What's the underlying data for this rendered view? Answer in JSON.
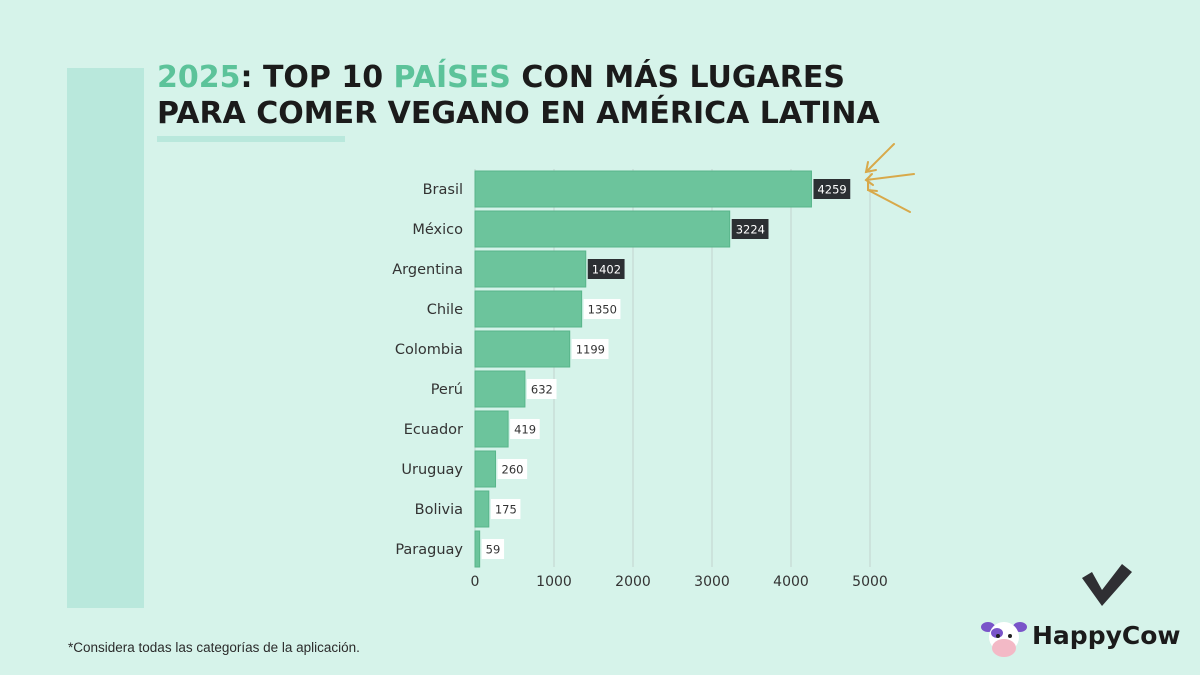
{
  "title": {
    "line1_year": "2025",
    "line1_sep": ": TOP 10 ",
    "line1_highlight": "PAÍSES",
    "line1_rest": " CON MÁS LUGARES",
    "line2": "PARA COMER VEGANO EN AMÉRICA LATINA"
  },
  "footnote": "*Considera todas las categorías de la aplicación.",
  "logo": {
    "text": "HappyCow"
  },
  "colors": {
    "background": "#d6f3ea",
    "bar": "#6cc49c",
    "accent_title": "#5cc39a",
    "arrow": "#d8a94a",
    "dark_label": "#2c2f33"
  },
  "chart_data": {
    "type": "bar",
    "orientation": "horizontal",
    "categories": [
      "Brasil",
      "México",
      "Argentina",
      "Chile",
      "Colombia",
      "Perú",
      "Ecuador",
      "Uruguay",
      "Bolivia",
      "Paraguay"
    ],
    "values": [
      4259,
      3224,
      1402,
      1350,
      1199,
      632,
      419,
      260,
      175,
      59
    ],
    "data_labels": [
      "4259",
      "3224",
      "1402",
      "1350",
      "1199",
      "632",
      "419",
      "260",
      "175",
      "59"
    ],
    "dark_label_indices": [
      0,
      1,
      2
    ],
    "xlim": [
      0,
      5000
    ],
    "xticks": [
      0,
      1000,
      2000,
      3000,
      4000,
      5000
    ],
    "xtick_labels": [
      "0",
      "1000",
      "2000",
      "3000",
      "4000",
      "5000"
    ],
    "grid": "vertical",
    "annotation": "arrows pointing at Brasil bar"
  }
}
